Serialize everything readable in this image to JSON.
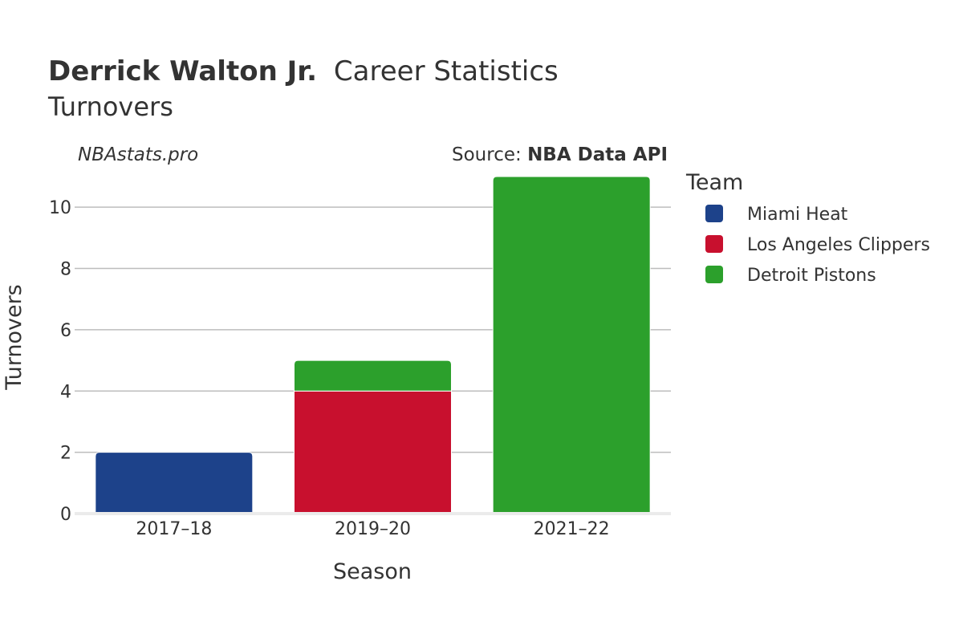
{
  "chart_data": {
    "type": "bar",
    "stacked": true,
    "title_bold": "Derrick Walton Jr.",
    "title_rest": "Career Statistics",
    "subtitle": "Turnovers",
    "watermark": "NBAstats.pro",
    "source_prefix": "Source: ",
    "source_name": "NBA Data API",
    "xlabel": "Season",
    "ylabel": "Turnovers",
    "ylim": [
      0,
      11
    ],
    "yticks": [
      0,
      2,
      4,
      6,
      8,
      10
    ],
    "grid": true,
    "categories": [
      "2017–18",
      "2019–20",
      "2021–22"
    ],
    "legend": {
      "title": "Team",
      "position": "right"
    },
    "series": [
      {
        "name": "Miami Heat",
        "color": "#1d428a",
        "values": [
          2,
          0,
          0
        ]
      },
      {
        "name": "Los Angeles Clippers",
        "color": "#c8102e",
        "values": [
          0,
          4,
          0
        ]
      },
      {
        "name": "Detroit Pistons",
        "color": "#2ca02c",
        "values": [
          0,
          1,
          11
        ]
      }
    ]
  }
}
